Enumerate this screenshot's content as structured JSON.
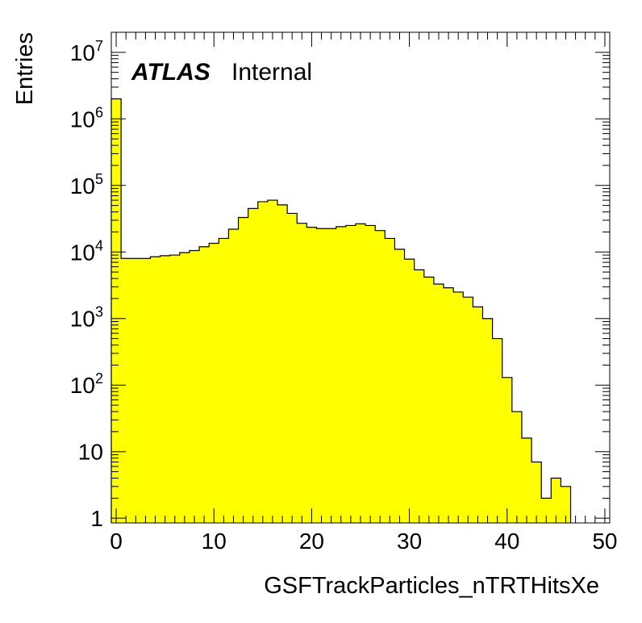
{
  "chart_data": {
    "type": "histogram",
    "xlabel": "GSFTrackParticles_nTRTHitsXe",
    "ylabel": "Entries",
    "xlim": [
      -0.5,
      50.5
    ],
    "ylim": [
      0.85,
      20000000
    ],
    "yscale": "log",
    "bin_width": 1,
    "x_bin_low_edges": [
      -0.5,
      0.5,
      1.5,
      2.5,
      3.5,
      4.5,
      5.5,
      6.5,
      7.5,
      8.5,
      9.5,
      10.5,
      11.5,
      12.5,
      13.5,
      14.5,
      15.5,
      16.5,
      17.5,
      18.5,
      19.5,
      20.5,
      21.5,
      22.5,
      23.5,
      24.5,
      25.5,
      26.5,
      27.5,
      28.5,
      29.5,
      30.5,
      31.5,
      32.5,
      33.5,
      34.5,
      35.5,
      36.5,
      37.5,
      38.5,
      39.5,
      40.5,
      41.5,
      42.5,
      43.5,
      44.5,
      45.5,
      46.5,
      47.5,
      48.5,
      49.5
    ],
    "values": [
      2000000,
      8000,
      8000,
      8000,
      8500,
      8800,
      9000,
      9800,
      10500,
      12000,
      13500,
      16000,
      22000,
      33000,
      45000,
      57000,
      60000,
      51000,
      38000,
      27000,
      23500,
      22500,
      22500,
      24000,
      25000,
      26500,
      25000,
      21000,
      16000,
      11000,
      7800,
      5400,
      4200,
      3300,
      2900,
      2500,
      2100,
      1500,
      1000,
      500,
      130,
      40,
      16,
      7,
      2,
      4,
      3,
      0,
      0,
      0,
      0
    ],
    "xticks": [
      "0",
      "10",
      "20",
      "30",
      "40",
      "50"
    ],
    "yticks": [
      {
        "value": 1,
        "base": "1",
        "exp": ""
      },
      {
        "value": 10,
        "base": "10",
        "exp": ""
      },
      {
        "value": 100,
        "base": "10",
        "exp": "2"
      },
      {
        "value": 1000,
        "base": "10",
        "exp": "3"
      },
      {
        "value": 10000,
        "base": "10",
        "exp": "4"
      },
      {
        "value": 100000,
        "base": "10",
        "exp": "5"
      },
      {
        "value": 1000000,
        "base": "10",
        "exp": "6"
      },
      {
        "value": 10000000,
        "base": "10",
        "exp": "7"
      }
    ],
    "fill_color": "#ffff00",
    "line_color": "#000000",
    "grid": false,
    "annotation": {
      "experiment": "ATLAS",
      "status": "Internal"
    }
  }
}
